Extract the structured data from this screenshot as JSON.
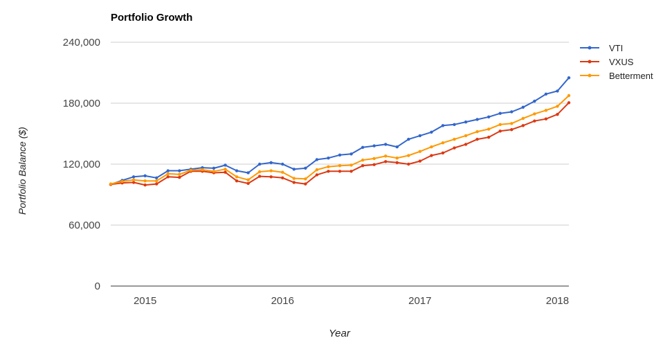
{
  "chart_data": {
    "type": "line",
    "title": "Portfolio Growth",
    "xlabel": "Year",
    "ylabel": "Portfolio Balance ($)",
    "x_ticks": [
      "2015",
      "2016",
      "2017",
      "2018"
    ],
    "y_ticks": [
      "0",
      "60,000",
      "120,000",
      "180,000",
      "240,000"
    ],
    "ylim": [
      0,
      240000
    ],
    "grid": true,
    "legend_position": "right",
    "x": [
      "2014-10",
      "2014-11",
      "2014-12",
      "2015-01",
      "2015-02",
      "2015-03",
      "2015-04",
      "2015-05",
      "2015-06",
      "2015-07",
      "2015-08",
      "2015-09",
      "2015-10",
      "2015-11",
      "2015-12",
      "2016-01",
      "2016-02",
      "2016-03",
      "2016-04",
      "2016-05",
      "2016-06",
      "2016-07",
      "2016-08",
      "2016-09",
      "2016-10",
      "2016-11",
      "2016-12",
      "2017-01",
      "2017-02",
      "2017-03",
      "2017-04",
      "2017-05",
      "2017-06",
      "2017-07",
      "2017-08",
      "2017-09",
      "2017-10",
      "2017-11",
      "2017-12",
      "2018-01",
      "2018-02"
    ],
    "series": [
      {
        "name": "VTI",
        "color": "#3366cc",
        "values": [
          100000,
          104000,
          107500,
          108500,
          106500,
          113500,
          113500,
          115000,
          116500,
          116000,
          119000,
          113500,
          111500,
          120000,
          121500,
          120000,
          115000,
          116000,
          124500,
          126000,
          129000,
          130000,
          136500,
          138000,
          139500,
          137000,
          144500,
          148000,
          151500,
          158000,
          159000,
          161500,
          164000,
          166500,
          170000,
          171500,
          176000,
          182000,
          189000,
          192000,
          205000
        ]
      },
      {
        "name": "VXUS",
        "color": "#dc3912",
        "values": [
          100000,
          101500,
          102000,
          99500,
          100500,
          107500,
          107000,
          113000,
          113000,
          111500,
          112000,
          103500,
          101000,
          108000,
          107500,
          106500,
          102000,
          100500,
          109500,
          113000,
          113000,
          113000,
          118500,
          119500,
          122500,
          121500,
          120000,
          123000,
          128500,
          131000,
          136000,
          139500,
          144500,
          146500,
          152500,
          154000,
          158000,
          162500,
          164500,
          169000,
          180500
        ]
      },
      {
        "name": "Betterment",
        "color": "#ff9900",
        "values": [
          100500,
          103000,
          104500,
          103500,
          103500,
          110500,
          110000,
          114000,
          114500,
          113000,
          115000,
          107500,
          104500,
          112500,
          113500,
          112000,
          106000,
          105500,
          114500,
          117500,
          118500,
          119000,
          124000,
          125500,
          128000,
          126000,
          128500,
          132500,
          137000,
          141000,
          144500,
          148000,
          152000,
          154500,
          159000,
          160000,
          165000,
          169500,
          173000,
          177000,
          187500
        ]
      }
    ]
  }
}
